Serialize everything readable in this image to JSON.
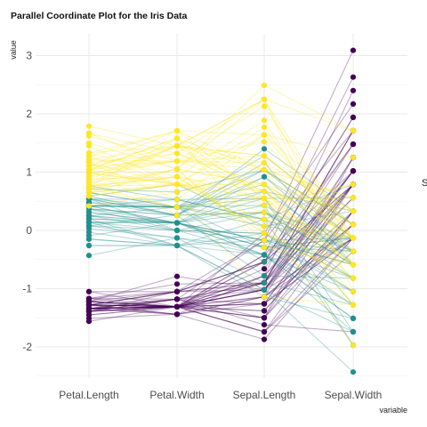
{
  "chart_data": {
    "type": "line",
    "title": "Parallel Coordinate Plot for the Iris Data",
    "xlabel": "variable",
    "ylabel": "value",
    "categories": [
      "Petal.Length",
      "Petal.Width",
      "Sepal.Length",
      "Sepal.Width"
    ],
    "ylim": [
      -2.6,
      3.3
    ],
    "yticks": [
      -2,
      -1,
      0,
      1,
      2,
      3
    ],
    "grid": true,
    "legend_label_visible": "S",
    "series": [
      {
        "color": "#440154",
        "lines": [
          [
            -1.34,
            -1.31,
            -0.9,
            1.02
          ],
          [
            -1.34,
            -1.31,
            -1.14,
            -0.13
          ],
          [
            -1.39,
            -1.31,
            -1.38,
            0.33
          ],
          [
            -1.28,
            -1.31,
            -1.5,
            0.1
          ],
          [
            -1.34,
            -1.31,
            -1.02,
            1.25
          ],
          [
            -1.17,
            -1.05,
            -0.54,
            1.94
          ],
          [
            -1.34,
            -1.18,
            -1.5,
            0.79
          ],
          [
            -1.28,
            -1.31,
            -1.02,
            0.79
          ],
          [
            -1.34,
            -1.31,
            -1.74,
            -0.36
          ],
          [
            -1.28,
            -1.44,
            -1.14,
            0.1
          ],
          [
            -1.28,
            -1.31,
            -0.54,
            1.48
          ],
          [
            -1.22,
            -1.31,
            -1.26,
            0.79
          ],
          [
            -1.34,
            -1.44,
            -1.26,
            -0.13
          ],
          [
            -1.51,
            -1.44,
            -1.87,
            -0.13
          ],
          [
            -1.45,
            -1.31,
            -0.05,
            2.17
          ],
          [
            -1.28,
            -1.05,
            -0.17,
            3.09
          ],
          [
            -1.39,
            -1.05,
            -0.54,
            1.94
          ],
          [
            -1.34,
            -1.18,
            -0.9,
            1.02
          ],
          [
            -1.17,
            -1.18,
            -0.17,
            1.71
          ],
          [
            -1.28,
            -1.18,
            -0.9,
            1.71
          ],
          [
            -1.17,
            -1.31,
            -0.54,
            0.79
          ],
          [
            -1.28,
            -1.05,
            -0.9,
            1.48
          ],
          [
            -1.56,
            -1.31,
            -1.5,
            1.25
          ],
          [
            -1.17,
            -0.92,
            -0.9,
            0.56
          ],
          [
            -1.05,
            -1.31,
            -1.26,
            0.79
          ],
          [
            -1.22,
            -1.31,
            -1.02,
            -0.13
          ],
          [
            -1.22,
            -1.05,
            -1.02,
            0.79
          ],
          [
            -1.28,
            -1.31,
            -0.78,
            1.02
          ],
          [
            -1.34,
            -1.31,
            -0.78,
            0.79
          ],
          [
            -1.22,
            -1.31,
            -1.38,
            0.33
          ],
          [
            -1.22,
            -1.31,
            -1.26,
            0.1
          ],
          [
            -1.28,
            -1.05,
            -0.54,
            0.79
          ],
          [
            -1.28,
            -1.44,
            -0.78,
            2.4
          ],
          [
            -1.34,
            -1.31,
            -0.42,
            2.63
          ],
          [
            -1.28,
            -1.31,
            -1.14,
            0.1
          ],
          [
            -1.45,
            -1.31,
            -1.02,
            0.33
          ],
          [
            -1.39,
            -1.31,
            -0.42,
            1.02
          ],
          [
            -1.34,
            -1.44,
            -1.14,
            1.25
          ],
          [
            -1.39,
            -1.31,
            -1.74,
            -0.13
          ],
          [
            -1.28,
            -1.31,
            -0.9,
            0.79
          ],
          [
            -1.39,
            -1.18,
            -1.02,
            1.02
          ],
          [
            -1.39,
            -1.18,
            -1.62,
            -1.74
          ],
          [
            -1.39,
            -1.31,
            -1.74,
            0.33
          ],
          [
            -1.22,
            -0.79,
            -1.02,
            1.02
          ],
          [
            -1.05,
            -1.05,
            -0.9,
            1.71
          ],
          [
            -1.34,
            -1.18,
            -1.26,
            -0.13
          ],
          [
            -1.22,
            -1.31,
            -0.9,
            1.71
          ],
          [
            -1.34,
            -1.31,
            -1.5,
            0.33
          ],
          [
            -1.28,
            -1.31,
            -0.66,
            1.48
          ],
          [
            -1.34,
            -1.31,
            -1.02,
            0.56
          ]
        ]
      },
      {
        "color": "#21908d",
        "lines": [
          [
            0.54,
            0.26,
            1.4,
            0.33
          ],
          [
            0.42,
            0.4,
            0.67,
            0.33
          ],
          [
            0.65,
            0.4,
            1.28,
            0.1
          ],
          [
            0.14,
            0.13,
            -0.42,
            -1.74
          ],
          [
            0.48,
            0.4,
            0.79,
            -0.59
          ],
          [
            0.42,
            0.13,
            -0.17,
            -0.59
          ],
          [
            0.54,
            0.53,
            0.55,
            0.56
          ],
          [
            -0.26,
            -0.26,
            -1.14,
            -1.51
          ],
          [
            0.42,
            0.13,
            0.92,
            -0.36
          ],
          [
            0.08,
            0.26,
            -0.78,
            -0.82
          ],
          [
            -0.15,
            -0.26,
            -1.02,
            -2.43
          ],
          [
            0.25,
            0.4,
            0.07,
            -0.13
          ],
          [
            0.14,
            -0.26,
            0.19,
            -1.97
          ],
          [
            0.54,
            0.26,
            0.31,
            -0.36
          ],
          [
            -0.09,
            0.13,
            -0.29,
            -0.36
          ],
          [
            0.37,
            0.26,
            1.04,
            0.1
          ],
          [
            0.42,
            0.4,
            -0.29,
            -0.13
          ],
          [
            0.2,
            -0.26,
            -0.05,
            -0.82
          ],
          [
            0.42,
            0.4,
            0.43,
            -1.97
          ],
          [
            0.08,
            -0.13,
            -0.29,
            -1.28
          ],
          [
            0.59,
            0.79,
            0.07,
            0.33
          ],
          [
            0.14,
            0.13,
            0.31,
            -0.59
          ],
          [
            0.65,
            0.4,
            0.55,
            -1.28
          ],
          [
            0.54,
            0.0,
            0.31,
            -0.59
          ],
          [
            0.31,
            0.13,
            0.67,
            -0.36
          ],
          [
            0.37,
            0.26,
            0.92,
            -0.13
          ],
          [
            0.59,
            0.26,
            1.16,
            -0.59
          ],
          [
            0.71,
            0.66,
            1.04,
            -0.13
          ],
          [
            0.42,
            0.4,
            0.19,
            -0.36
          ],
          [
            -0.15,
            -0.26,
            -0.17,
            -1.05
          ],
          [
            0.03,
            -0.13,
            -0.42,
            -1.51
          ],
          [
            -0.03,
            -0.26,
            -0.42,
            -1.51
          ],
          [
            0.08,
            0.0,
            -0.05,
            -0.82
          ],
          [
            0.76,
            0.53,
            0.19,
            -0.82
          ],
          [
            0.42,
            0.4,
            -0.54,
            -0.13
          ],
          [
            0.42,
            0.53,
            0.19,
            0.79
          ],
          [
            0.54,
            0.4,
            1.04,
            0.1
          ],
          [
            0.37,
            0.13,
            0.55,
            -1.74
          ],
          [
            0.2,
            0.13,
            -0.29,
            -0.13
          ],
          [
            0.14,
            0.13,
            -0.42,
            -1.28
          ],
          [
            0.37,
            0.0,
            -0.42,
            -1.05
          ],
          [
            0.48,
            0.26,
            0.31,
            -0.13
          ],
          [
            0.14,
            0.0,
            -0.05,
            -1.05
          ],
          [
            -0.26,
            -0.26,
            -1.02,
            -1.74
          ],
          [
            0.25,
            0.13,
            -0.29,
            -0.82
          ],
          [
            0.25,
            0.0,
            -0.17,
            -0.13
          ],
          [
            0.25,
            0.13,
            -0.17,
            -0.36
          ],
          [
            0.31,
            0.13,
            0.43,
            -0.36
          ],
          [
            -0.43,
            -0.13,
            -0.9,
            -1.28
          ],
          [
            0.2,
            0.13,
            -0.17,
            -0.59
          ]
        ]
      },
      {
        "color": "#fde725",
        "lines": [
          [
            1.27,
            1.71,
            0.55,
            0.56
          ],
          [
            0.76,
            0.92,
            -0.05,
            -0.82
          ],
          [
            1.21,
            1.19,
            1.52,
            -0.13
          ],
          [
            1.04,
            0.79,
            0.55,
            -0.36
          ],
          [
            1.16,
            1.32,
            0.79,
            -0.13
          ],
          [
            1.62,
            1.19,
            2.13,
            -0.13
          ],
          [
            0.42,
            0.66,
            -1.14,
            -1.28
          ],
          [
            1.45,
            0.79,
            1.77,
            -0.36
          ],
          [
            1.16,
            0.79,
            1.04,
            -1.28
          ],
          [
            1.33,
            1.71,
            1.64,
            1.25
          ],
          [
            0.76,
            1.05,
            0.79,
            0.33
          ],
          [
            0.88,
            0.92,
            0.67,
            -0.82
          ],
          [
            0.99,
            1.19,
            1.16,
            -0.13
          ],
          [
            0.71,
            1.05,
            -0.17,
            -1.28
          ],
          [
            0.76,
            1.58,
            -0.05,
            -0.59
          ],
          [
            0.88,
            1.45,
            0.67,
            0.33
          ],
          [
            0.99,
            0.79,
            0.79,
            -0.13
          ],
          [
            1.67,
            1.32,
            2.25,
            1.71
          ],
          [
            1.79,
            1.45,
            2.25,
            -1.05
          ],
          [
            0.71,
            0.4,
            0.19,
            -1.97
          ],
          [
            1.1,
            1.45,
            1.28,
            0.33
          ],
          [
            0.65,
            1.05,
            -0.29,
            -0.59
          ],
          [
            1.67,
            1.05,
            2.25,
            -0.59
          ],
          [
            0.65,
            0.79,
            0.55,
            -0.82
          ],
          [
            1.1,
            1.19,
            1.04,
            0.56
          ],
          [
            1.27,
            0.79,
            1.64,
            0.33
          ],
          [
            0.59,
            0.79,
            0.43,
            -0.59
          ],
          [
            0.65,
            0.79,
            0.31,
            -0.13
          ],
          [
            1.04,
            1.19,
            0.67,
            -0.59
          ],
          [
            1.16,
            0.53,
            1.64,
            -0.13
          ],
          [
            1.33,
            0.92,
            1.89,
            -0.59
          ],
          [
            1.5,
            1.05,
            2.49,
            1.71
          ],
          [
            1.04,
            1.32,
            0.67,
            -0.59
          ],
          [
            0.76,
            0.4,
            0.55,
            -0.59
          ],
          [
            1.04,
            0.26,
            0.31,
            -1.05
          ],
          [
            1.33,
            1.45,
            2.25,
            -0.13
          ],
          [
            1.04,
            1.58,
            0.55,
            0.79
          ],
          [
            0.99,
            0.79,
            0.67,
            0.1
          ],
          [
            0.59,
            0.79,
            0.19,
            -0.13
          ],
          [
            0.93,
            1.19,
            1.28,
            0.1
          ],
          [
            1.04,
            1.58,
            1.04,
            0.1
          ],
          [
            0.76,
            1.45,
            1.28,
            0.1
          ],
          [
            0.76,
            0.92,
            -0.05,
            -0.82
          ],
          [
            1.21,
            1.45,
            1.16,
            0.33
          ],
          [
            1.1,
            1.71,
            1.04,
            0.56
          ],
          [
            0.82,
            1.45,
            1.04,
            -0.13
          ],
          [
            0.71,
            0.92,
            0.55,
            -1.28
          ],
          [
            0.82,
            1.05,
            0.79,
            -0.13
          ],
          [
            0.93,
            1.45,
            0.43,
            0.79
          ],
          [
            0.76,
            0.79,
            0.07,
            -0.13
          ]
        ]
      }
    ]
  }
}
